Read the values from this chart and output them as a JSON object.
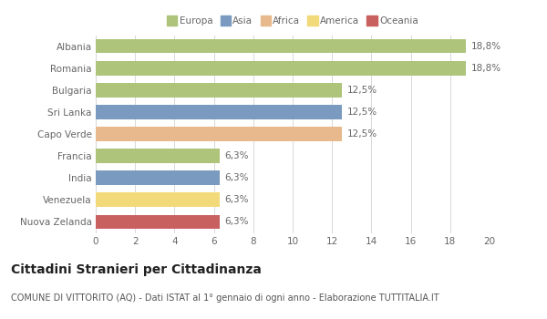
{
  "categories": [
    "Albania",
    "Romania",
    "Bulgaria",
    "Sri Lanka",
    "Capo Verde",
    "Francia",
    "India",
    "Venezuela",
    "Nuova Zelanda"
  ],
  "values": [
    18.8,
    18.8,
    12.5,
    12.5,
    12.5,
    6.3,
    6.3,
    6.3,
    6.3
  ],
  "labels": [
    "18,8%",
    "18,8%",
    "12,5%",
    "12,5%",
    "12,5%",
    "6,3%",
    "6,3%",
    "6,3%",
    "6,3%"
  ],
  "colors": [
    "#adc47a",
    "#adc47a",
    "#adc47a",
    "#7a9abf",
    "#e8b98c",
    "#adc47a",
    "#7a9abf",
    "#f2d97a",
    "#c96060"
  ],
  "legend": [
    {
      "label": "Europa",
      "color": "#adc47a"
    },
    {
      "label": "Asia",
      "color": "#7a9abf"
    },
    {
      "label": "Africa",
      "color": "#e8b98c"
    },
    {
      "label": "America",
      "color": "#f2d97a"
    },
    {
      "label": "Oceania",
      "color": "#c96060"
    }
  ],
  "xlim": [
    0,
    20
  ],
  "xticks": [
    0,
    2,
    4,
    6,
    8,
    10,
    12,
    14,
    16,
    18,
    20
  ],
  "title": "Cittadini Stranieri per Cittadinanza",
  "subtitle": "COMUNE DI VITTORITO (AQ) - Dati ISTAT al 1° gennaio di ogni anno - Elaborazione TUTTITALIA.IT",
  "bar_height": 0.65,
  "background_color": "#ffffff",
  "grid_color": "#d8d8d8",
  "label_fontsize": 7.5,
  "tick_fontsize": 7.5,
  "title_fontsize": 10,
  "subtitle_fontsize": 7
}
